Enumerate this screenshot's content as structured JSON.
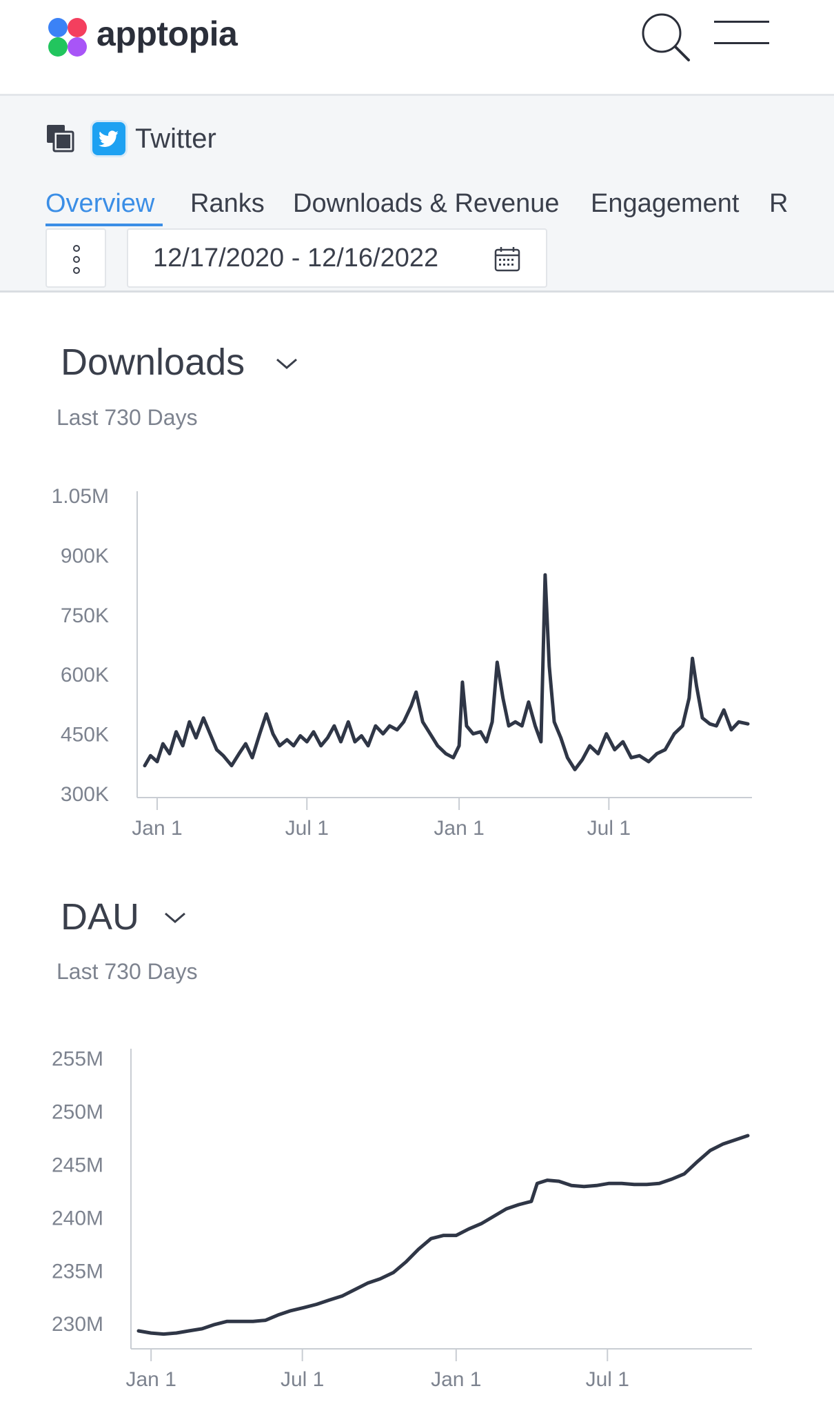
{
  "header": {
    "brand": "apptopia"
  },
  "app": {
    "name": "Twitter"
  },
  "tabs": [
    "Overview",
    "Ranks",
    "Downloads & Revenue",
    "Engagement",
    "R"
  ],
  "date_range": "12/17/2020 - 12/16/2022",
  "sections": {
    "downloads": {
      "title": "Downloads",
      "subtitle": "Last 730 Days"
    },
    "dau": {
      "title": "DAU",
      "subtitle": "Last 730 Days"
    }
  },
  "colors": {
    "line": "#2f3646",
    "axis": "#c9cdd3",
    "accent": "#3b8ee6",
    "tick": "#7d838f"
  },
  "chart_data": [
    {
      "type": "line",
      "title": "Downloads",
      "yticks": [
        "300K",
        "450K",
        "600K",
        "750K",
        "900K",
        "1.05M"
      ],
      "ylim": [
        300000,
        1050000
      ],
      "xticks": [
        "Jan 1",
        "Jul 1",
        "Jan 1",
        "Jul 1"
      ],
      "xtick_dates": [
        "2021-01-01",
        "2021-07-01",
        "2022-01-01",
        "2022-07-01"
      ],
      "x_start": "2020-12-17",
      "x_end": "2022-12-16",
      "series": [
        {
          "points": [
            [
              "2020-12-17",
              370000
            ],
            [
              "2020-12-24",
              395000
            ],
            [
              "2021-01-01",
              380000
            ],
            [
              "2021-01-08",
              425000
            ],
            [
              "2021-01-16",
              400000
            ],
            [
              "2021-01-24",
              455000
            ],
            [
              "2021-02-01",
              420000
            ],
            [
              "2021-02-09",
              480000
            ],
            [
              "2021-02-17",
              440000
            ],
            [
              "2021-02-26",
              490000
            ],
            [
              "2021-03-06",
              450000
            ],
            [
              "2021-03-14",
              410000
            ],
            [
              "2021-03-22",
              395000
            ],
            [
              "2021-04-01",
              370000
            ],
            [
              "2021-04-10",
              400000
            ],
            [
              "2021-04-18",
              425000
            ],
            [
              "2021-04-26",
              390000
            ],
            [
              "2021-05-05",
              450000
            ],
            [
              "2021-05-13",
              500000
            ],
            [
              "2021-05-21",
              450000
            ],
            [
              "2021-05-29",
              420000
            ],
            [
              "2021-06-07",
              435000
            ],
            [
              "2021-06-15",
              420000
            ],
            [
              "2021-06-23",
              445000
            ],
            [
              "2021-07-01",
              430000
            ],
            [
              "2021-07-09",
              455000
            ],
            [
              "2021-07-18",
              420000
            ],
            [
              "2021-07-26",
              440000
            ],
            [
              "2021-08-03",
              470000
            ],
            [
              "2021-08-11",
              430000
            ],
            [
              "2021-08-20",
              480000
            ],
            [
              "2021-08-28",
              430000
            ],
            [
              "2021-09-05",
              445000
            ],
            [
              "2021-09-13",
              420000
            ],
            [
              "2021-09-22",
              470000
            ],
            [
              "2021-10-01",
              450000
            ],
            [
              "2021-10-09",
              470000
            ],
            [
              "2021-10-18",
              460000
            ],
            [
              "2021-10-26",
              480000
            ],
            [
              "2021-11-04",
              520000
            ],
            [
              "2021-11-10",
              555000
            ],
            [
              "2021-11-18",
              480000
            ],
            [
              "2021-11-27",
              450000
            ],
            [
              "2021-12-06",
              420000
            ],
            [
              "2021-12-16",
              400000
            ],
            [
              "2021-12-25",
              390000
            ],
            [
              "2022-01-01",
              420000
            ],
            [
              "2022-01-05",
              580000
            ],
            [
              "2022-01-10",
              470000
            ],
            [
              "2022-01-18",
              450000
            ],
            [
              "2022-01-27",
              455000
            ],
            [
              "2022-02-03",
              430000
            ],
            [
              "2022-02-10",
              480000
            ],
            [
              "2022-02-16",
              630000
            ],
            [
              "2022-02-23",
              540000
            ],
            [
              "2022-03-02",
              470000
            ],
            [
              "2022-03-10",
              480000
            ],
            [
              "2022-03-18",
              470000
            ],
            [
              "2022-03-26",
              530000
            ],
            [
              "2022-04-03",
              470000
            ],
            [
              "2022-04-10",
              430000
            ],
            [
              "2022-04-15",
              850000
            ],
            [
              "2022-04-20",
              620000
            ],
            [
              "2022-04-26",
              480000
            ],
            [
              "2022-05-04",
              440000
            ],
            [
              "2022-05-12",
              390000
            ],
            [
              "2022-05-21",
              360000
            ],
            [
              "2022-05-30",
              385000
            ],
            [
              "2022-06-08",
              420000
            ],
            [
              "2022-06-18",
              400000
            ],
            [
              "2022-06-28",
              450000
            ],
            [
              "2022-07-08",
              410000
            ],
            [
              "2022-07-18",
              430000
            ],
            [
              "2022-07-28",
              390000
            ],
            [
              "2022-08-07",
              395000
            ],
            [
              "2022-08-18",
              380000
            ],
            [
              "2022-08-28",
              400000
            ],
            [
              "2022-09-07",
              410000
            ],
            [
              "2022-09-18",
              450000
            ],
            [
              "2022-09-28",
              470000
            ],
            [
              "2022-10-06",
              540000
            ],
            [
              "2022-10-10",
              640000
            ],
            [
              "2022-10-15",
              570000
            ],
            [
              "2022-10-22",
              490000
            ],
            [
              "2022-10-31",
              475000
            ],
            [
              "2022-11-08",
              470000
            ],
            [
              "2022-11-17",
              510000
            ],
            [
              "2022-11-26",
              460000
            ],
            [
              "2022-12-05",
              480000
            ],
            [
              "2022-12-16",
              475000
            ]
          ]
        }
      ]
    },
    {
      "type": "line",
      "title": "DAU",
      "yticks": [
        "230M",
        "235M",
        "240M",
        "245M",
        "250M",
        "255M"
      ],
      "ylim": [
        228000000,
        255500000
      ],
      "xticks": [
        "Jan 1",
        "Jul 1",
        "Jan 1",
        "Jul 1"
      ],
      "xtick_dates": [
        "2021-01-01",
        "2021-07-01",
        "2022-01-01",
        "2022-07-01"
      ],
      "x_start": "2020-12-17",
      "x_end": "2022-12-16",
      "series": [
        {
          "points": [
            [
              "2020-12-17",
              229300000
            ],
            [
              "2021-01-01",
              229100000
            ],
            [
              "2021-01-16",
              229000000
            ],
            [
              "2021-01-31",
              229100000
            ],
            [
              "2021-02-15",
              229300000
            ],
            [
              "2021-03-03",
              229500000
            ],
            [
              "2021-03-18",
              229900000
            ],
            [
              "2021-04-02",
              230200000
            ],
            [
              "2021-04-18",
              230200000
            ],
            [
              "2021-05-03",
              230200000
            ],
            [
              "2021-05-18",
              230300000
            ],
            [
              "2021-06-02",
              230800000
            ],
            [
              "2021-06-17",
              231200000
            ],
            [
              "2021-07-03",
              231500000
            ],
            [
              "2021-07-18",
              231800000
            ],
            [
              "2021-08-02",
              232200000
            ],
            [
              "2021-08-18",
              232600000
            ],
            [
              "2021-09-02",
              233200000
            ],
            [
              "2021-09-17",
              233800000
            ],
            [
              "2021-10-02",
              234200000
            ],
            [
              "2021-10-18",
              234800000
            ],
            [
              "2021-11-02",
              235800000
            ],
            [
              "2021-11-17",
              237000000
            ],
            [
              "2021-12-02",
              238000000
            ],
            [
              "2021-12-17",
              238300000
            ],
            [
              "2022-01-01",
              238300000
            ],
            [
              "2022-01-16",
              238900000
            ],
            [
              "2022-01-31",
              239400000
            ],
            [
              "2022-02-15",
              240100000
            ],
            [
              "2022-03-02",
              240800000
            ],
            [
              "2022-03-17",
              241200000
            ],
            [
              "2022-04-01",
              241500000
            ],
            [
              "2022-04-08",
              243200000
            ],
            [
              "2022-04-20",
              243500000
            ],
            [
              "2022-05-04",
              243400000
            ],
            [
              "2022-05-19",
              243000000
            ],
            [
              "2022-06-03",
              242900000
            ],
            [
              "2022-06-18",
              243000000
            ],
            [
              "2022-07-03",
              243200000
            ],
            [
              "2022-07-18",
              243200000
            ],
            [
              "2022-08-02",
              243100000
            ],
            [
              "2022-08-17",
              243100000
            ],
            [
              "2022-09-01",
              243200000
            ],
            [
              "2022-09-16",
              243600000
            ],
            [
              "2022-10-01",
              244100000
            ],
            [
              "2022-10-16",
              245200000
            ],
            [
              "2022-11-01",
              246300000
            ],
            [
              "2022-11-16",
              246900000
            ],
            [
              "2022-12-01",
              247300000
            ],
            [
              "2022-12-16",
              247700000
            ]
          ]
        }
      ]
    }
  ]
}
